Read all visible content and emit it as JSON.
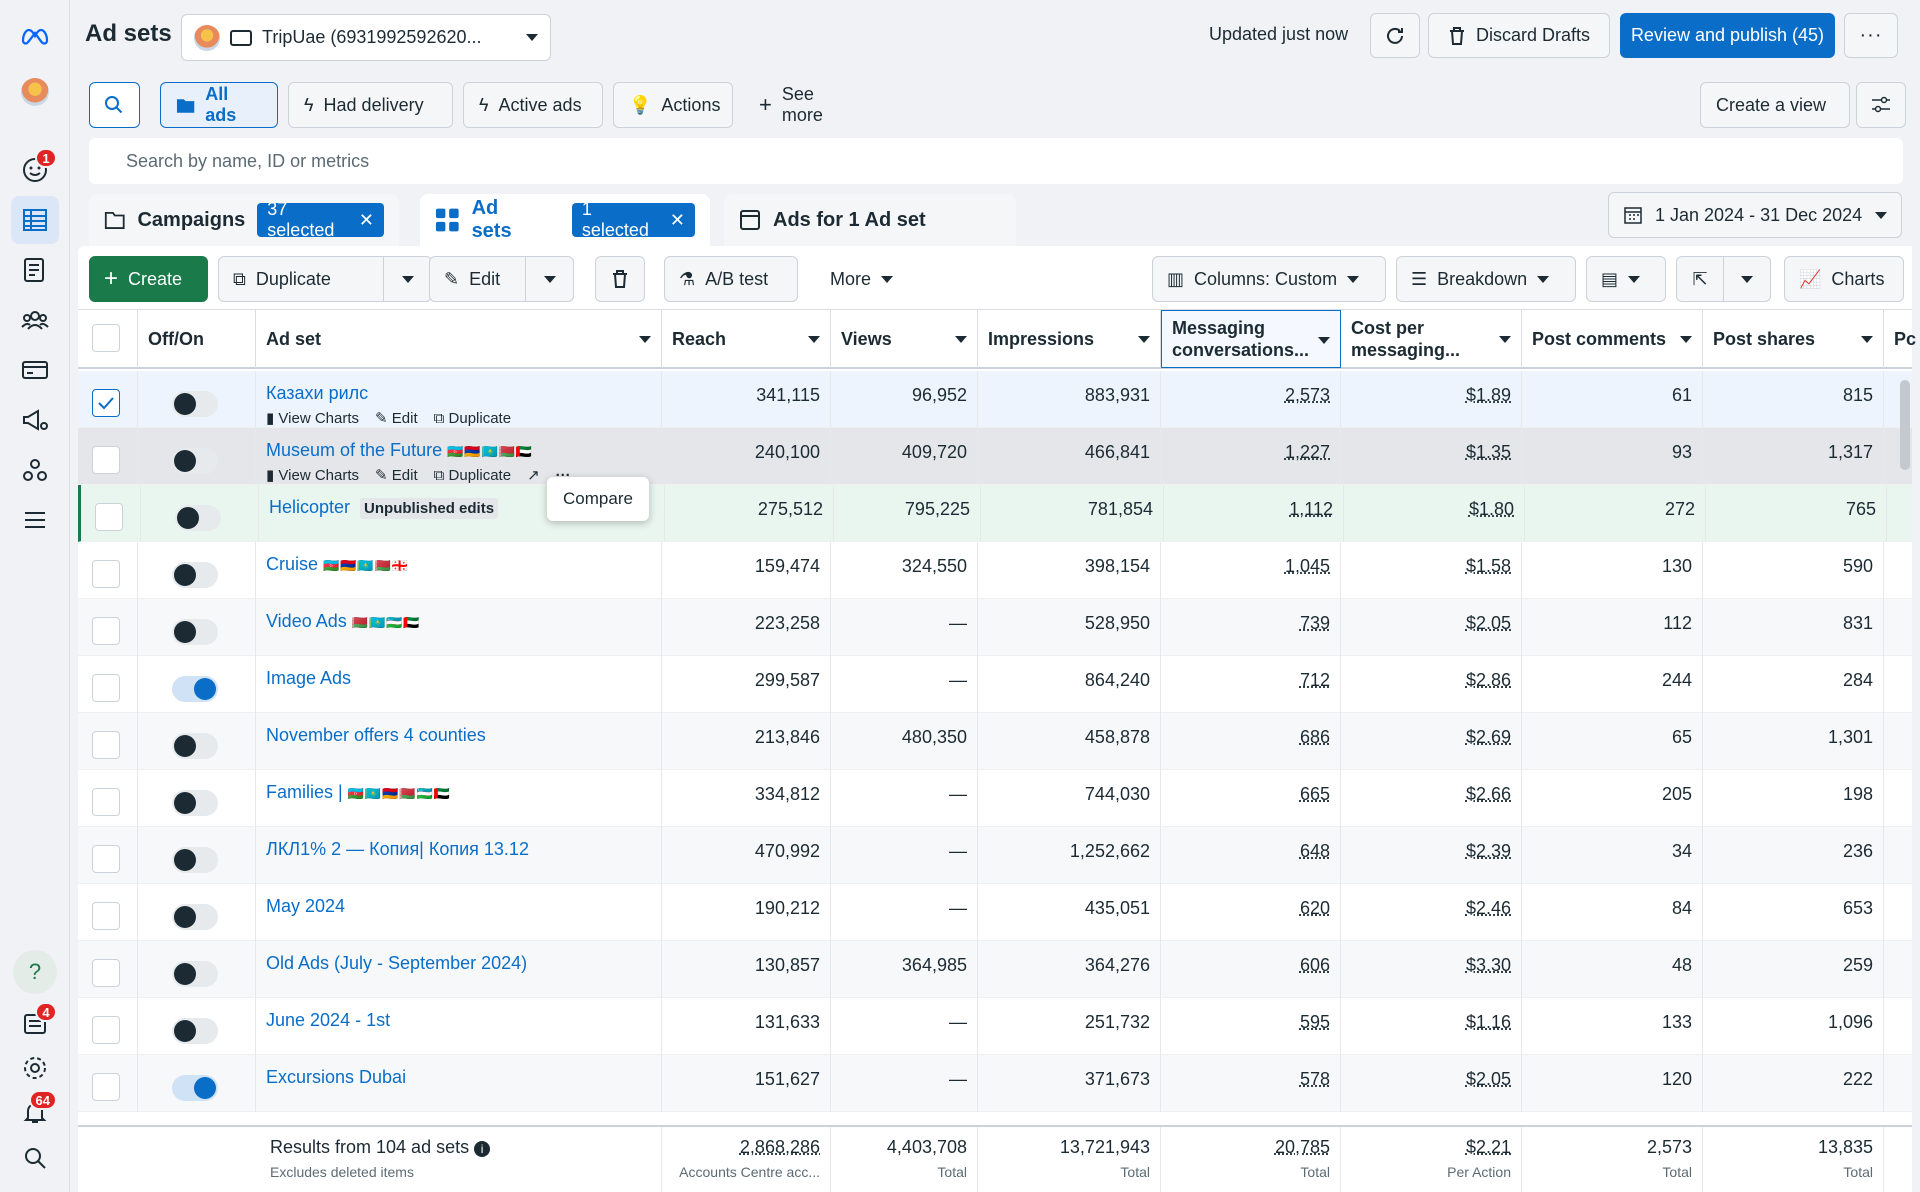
{
  "header": {
    "title": "Ad sets",
    "account_name": "TripUae (6931992592620...",
    "updated": "Updated just now",
    "discard": "Discard Drafts",
    "publish": "Review and publish (45)"
  },
  "nav_badges": {
    "chat": "1",
    "pages": "4",
    "notifications": "64"
  },
  "filters": {
    "all_ads": "All ads",
    "had_delivery": "Had delivery",
    "active_ads": "Active ads",
    "actions": "Actions",
    "see_more": "See more",
    "create_view": "Create a view"
  },
  "search": {
    "placeholder": "Search by name, ID or metrics"
  },
  "tabs": {
    "campaigns": "Campaigns",
    "campaigns_selected": "37 selected",
    "adsets": "Ad sets",
    "adsets_selected": "1 selected",
    "ads": "Ads for 1 Ad set"
  },
  "date_range": "1 Jan 2024 - 31 Dec 2024",
  "toolbar": {
    "create": "Create",
    "duplicate": "Duplicate",
    "edit": "Edit",
    "ab_test": "A/B test",
    "more": "More",
    "columns": "Columns: Custom",
    "breakdown": "Breakdown",
    "charts": "Charts"
  },
  "columns": {
    "offon": "Off/On",
    "adset": "Ad set",
    "reach": "Reach",
    "views": "Views",
    "impressions": "Impressions",
    "messaging_l1": "Messaging",
    "messaging_l2": "conversations...",
    "cost_l1": "Cost per",
    "cost_l2": "messaging...",
    "comments": "Post comments",
    "shares": "Post shares",
    "extra": "Pc"
  },
  "row_actions": {
    "view_charts": "View Charts",
    "edit": "Edit",
    "duplicate": "Duplicate"
  },
  "tooltip": "Compare",
  "unpublished_label": "Unpublished edits",
  "rows": [
    {
      "name": "Казахи рилс",
      "flags": "",
      "reach": "341,115",
      "views": "96,952",
      "impressions": "883,931",
      "messaging": "2,573",
      "cost": "$1.89",
      "comments": "61",
      "shares": "815",
      "on": false
    },
    {
      "name": "Museum of the Future",
      "flags": "🇦🇿🇦🇲🇰🇿🇧🇾🇦🇪",
      "reach": "240,100",
      "views": "409,720",
      "impressions": "466,841",
      "messaging": "1,227",
      "cost": "$1.35",
      "comments": "93",
      "shares": "1,317",
      "on": false
    },
    {
      "name": "Helicopter",
      "flags": "",
      "reach": "275,512",
      "views": "795,225",
      "impressions": "781,854",
      "messaging": "1,112",
      "cost": "$1.80",
      "comments": "272",
      "shares": "765",
      "on": false
    },
    {
      "name": "Cruise",
      "flags": "🇦🇿🇦🇲🇰🇿🇧🇾🇬🇪",
      "reach": "159,474",
      "views": "324,550",
      "impressions": "398,154",
      "messaging": "1,045",
      "cost": "$1.58",
      "comments": "130",
      "shares": "590",
      "on": false
    },
    {
      "name": "Video Ads",
      "flags": "🇧🇾🇰🇿🇺🇿🇦🇪",
      "reach": "223,258",
      "views": "—",
      "impressions": "528,950",
      "messaging": "739",
      "cost": "$2.05",
      "comments": "112",
      "shares": "831",
      "on": false
    },
    {
      "name": "Image Ads",
      "flags": "",
      "reach": "299,587",
      "views": "—",
      "impressions": "864,240",
      "messaging": "712",
      "cost": "$2.86",
      "comments": "244",
      "shares": "284",
      "on": true
    },
    {
      "name": "November offers 4 counties",
      "flags": "",
      "reach": "213,846",
      "views": "480,350",
      "impressions": "458,878",
      "messaging": "686",
      "cost": "$2.69",
      "comments": "65",
      "shares": "1,301",
      "on": false
    },
    {
      "name": "Families |",
      "flags": "🇦🇿🇰🇿🇦🇲🇧🇾🇺🇿🇦🇪",
      "reach": "334,812",
      "views": "—",
      "impressions": "744,030",
      "messaging": "665",
      "cost": "$2.66",
      "comments": "205",
      "shares": "198",
      "on": false
    },
    {
      "name": "ЛКЛ1% 2 — Копия| Копия 13.12",
      "flags": "",
      "reach": "470,992",
      "views": "—",
      "impressions": "1,252,662",
      "messaging": "648",
      "cost": "$2.39",
      "comments": "34",
      "shares": "236",
      "on": false
    },
    {
      "name": "May 2024",
      "flags": "",
      "reach": "190,212",
      "views": "—",
      "impressions": "435,051",
      "messaging": "620",
      "cost": "$2.46",
      "comments": "84",
      "shares": "653",
      "on": false
    },
    {
      "name": "Old Ads (July - September 2024)",
      "flags": "",
      "reach": "130,857",
      "views": "364,985",
      "impressions": "364,276",
      "messaging": "606",
      "cost": "$3.30",
      "comments": "48",
      "shares": "259",
      "on": false
    },
    {
      "name": "June 2024 - 1st",
      "flags": "",
      "reach": "131,633",
      "views": "—",
      "impressions": "251,732",
      "messaging": "595",
      "cost": "$1.16",
      "comments": "133",
      "shares": "1,096",
      "on": false
    },
    {
      "name": "Excursions Dubai",
      "flags": "",
      "reach": "151,627",
      "views": "—",
      "impressions": "371,673",
      "messaging": "578",
      "cost": "$2.05",
      "comments": "120",
      "shares": "222",
      "on": true
    }
  ],
  "footer": {
    "results": "Results from 104 ad sets",
    "excludes": "Excludes deleted items",
    "reach": "2,868,286",
    "reach_sub": "Accounts Centre acc...",
    "views": "4,403,708",
    "views_sub": "Total",
    "impressions": "13,721,943",
    "impressions_sub": "Total",
    "messaging": "20,785",
    "messaging_sub": "Total",
    "cost": "$2.21",
    "cost_sub": "Per Action",
    "comments": "2,573",
    "comments_sub": "Total",
    "shares": "13,835",
    "shares_sub": "Total"
  }
}
